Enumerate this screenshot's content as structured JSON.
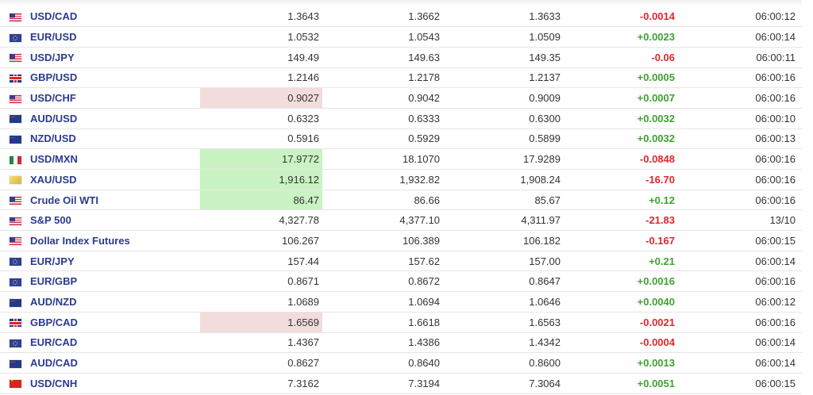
{
  "rows": [
    {
      "flag": "us-flag-icon",
      "name": "USD/CAD",
      "last": "1.3643",
      "high": "1.3662",
      "low": "1.3633",
      "chg": "-0.0014",
      "dir": "down",
      "time": "06:00:12",
      "clock": "open-clock-icon",
      "hl": ""
    },
    {
      "flag": "eu-flag-icon",
      "name": "EUR/USD",
      "last": "1.0532",
      "high": "1.0543",
      "low": "1.0509",
      "chg": "+0.0023",
      "dir": "up",
      "time": "06:00:14",
      "clock": "open-clock-icon",
      "hl": ""
    },
    {
      "flag": "us-flag-icon",
      "name": "USD/JPY",
      "last": "149.49",
      "high": "149.63",
      "low": "149.35",
      "chg": "-0.06",
      "dir": "down",
      "time": "06:00:11",
      "clock": "open-clock-icon",
      "hl": ""
    },
    {
      "flag": "gb-flag-icon",
      "name": "GBP/USD",
      "last": "1.2146",
      "high": "1.2178",
      "low": "1.2137",
      "chg": "+0.0005",
      "dir": "up",
      "time": "06:00:16",
      "clock": "open-clock-icon",
      "hl": ""
    },
    {
      "flag": "us-flag-icon",
      "name": "USD/CHF",
      "last": "0.9027",
      "high": "0.9042",
      "low": "0.9009",
      "chg": "+0.0007",
      "dir": "up",
      "time": "06:00:16",
      "clock": "open-clock-icon",
      "hl": "red"
    },
    {
      "flag": "au-flag-icon",
      "name": "AUD/USD",
      "last": "0.6323",
      "high": "0.6333",
      "low": "0.6300",
      "chg": "+0.0032",
      "dir": "up",
      "time": "06:00:10",
      "clock": "open-clock-icon",
      "hl": ""
    },
    {
      "flag": "au-flag-icon",
      "name": "NZD/USD",
      "last": "0.5916",
      "high": "0.5929",
      "low": "0.5899",
      "chg": "+0.0032",
      "dir": "up",
      "time": "06:00:13",
      "clock": "open-clock-icon",
      "hl": ""
    },
    {
      "flag": "us-flag-icon",
      "name": "USD/MXN",
      "last": "17.9772",
      "high": "18.1070",
      "low": "17.9289",
      "chg": "-0.0848",
      "dir": "down",
      "time": "06:00:16",
      "clock": "open-clock-icon",
      "hl": "green"
    },
    {
      "flag": "xau-flag-icon",
      "name": "XAU/USD",
      "last": "1,916.12",
      "high": "1,932.82",
      "low": "1,908.24",
      "chg": "-16.70",
      "dir": "down",
      "time": "06:00:16",
      "clock": "open-clock-icon",
      "hl": "green"
    },
    {
      "flag": "us-flag-icon",
      "name": "Crude Oil WTI",
      "last": "86.47",
      "high": "86.66",
      "low": "85.67",
      "chg": "+0.12",
      "dir": "up",
      "time": "06:00:16",
      "clock": "open-clock-icon",
      "hl": "green"
    },
    {
      "flag": "us-flag-icon",
      "name": "S&P 500",
      "last": "4,327.78",
      "high": "4,377.10",
      "low": "4,311.97",
      "chg": "-21.83",
      "dir": "down",
      "time": "13/10",
      "clock": "closed-clock-icon",
      "hl": ""
    },
    {
      "flag": "us-flag-icon",
      "name": "Dollar Index Futures",
      "last": "106.267",
      "high": "106.389",
      "low": "106.182",
      "chg": "-0.167",
      "dir": "down",
      "time": "06:00:15",
      "clock": "open-clock-icon",
      "hl": ""
    },
    {
      "flag": "eu-flag-icon",
      "name": "EUR/JPY",
      "last": "157.44",
      "high": "157.62",
      "low": "157.00",
      "chg": "+0.21",
      "dir": "up",
      "time": "06:00:14",
      "clock": "open-clock-icon",
      "hl": ""
    },
    {
      "flag": "eu-flag-icon",
      "name": "EUR/GBP",
      "last": "0.8671",
      "high": "0.8672",
      "low": "0.8647",
      "chg": "+0.0016",
      "dir": "up",
      "time": "06:00:16",
      "clock": "open-clock-icon",
      "hl": ""
    },
    {
      "flag": "au-flag-icon",
      "name": "AUD/NZD",
      "last": "1.0689",
      "high": "1.0694",
      "low": "1.0646",
      "chg": "+0.0040",
      "dir": "up",
      "time": "06:00:12",
      "clock": "open-clock-icon",
      "hl": ""
    },
    {
      "flag": "gb-flag-icon",
      "name": "GBP/CAD",
      "last": "1.6569",
      "high": "1.6618",
      "low": "1.6563",
      "chg": "-0.0021",
      "dir": "down",
      "time": "06:00:16",
      "clock": "open-clock-icon",
      "hl": "red"
    },
    {
      "flag": "eu-flag-icon",
      "name": "EUR/CAD",
      "last": "1.4367",
      "high": "1.4386",
      "low": "1.4342",
      "chg": "-0.0004",
      "dir": "down",
      "time": "06:00:14",
      "clock": "open-clock-icon",
      "hl": ""
    },
    {
      "flag": "au-flag-icon",
      "name": "AUD/CAD",
      "last": "0.8627",
      "high": "0.8640",
      "low": "0.8600",
      "chg": "+0.0013",
      "dir": "up",
      "time": "06:00:14",
      "clock": "open-clock-icon",
      "hl": ""
    },
    {
      "flag": "cn-flag-icon",
      "name": "USD/CNH",
      "last": "7.3162",
      "high": "7.3194",
      "low": "7.3064",
      "chg": "+0.0051",
      "dir": "up",
      "time": "06:00:15",
      "clock": "open-clock-icon",
      "hl": ""
    }
  ],
  "colors": {
    "link": "#2a3a8f",
    "negative": "#e0272e",
    "positive": "#3da32f",
    "highlight_down": "#f3dcdc",
    "highlight_up": "#c9f3c2",
    "clock_open": "#5cb82e",
    "clock_closed": "#e0272e"
  }
}
